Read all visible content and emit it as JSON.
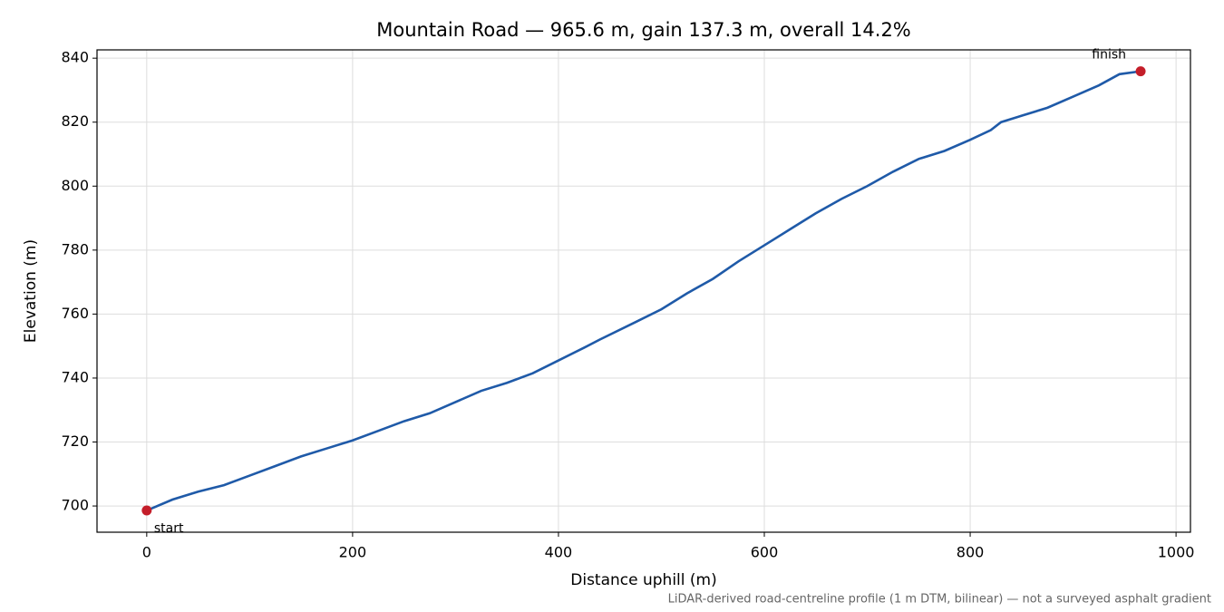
{
  "chart_data": {
    "type": "line",
    "title": "Mountain Road — 965.6 m, gain 137.3 m, overall 14.2%",
    "xlabel": "Distance uphill (m)",
    "ylabel": "Elevation (m)",
    "note": "LiDAR-derived road-centreline profile (1 m DTM, bilinear) — not a surveyed asphalt gradient",
    "color": "#1f5aa8",
    "x": [
      0,
      25,
      50,
      75,
      100,
      125,
      150,
      175,
      200,
      225,
      250,
      275,
      300,
      325,
      350,
      375,
      400,
      425,
      440,
      475,
      500,
      525,
      550,
      575,
      600,
      625,
      650,
      675,
      700,
      725,
      750,
      775,
      800,
      820,
      830,
      850,
      875,
      900,
      925,
      945,
      965.6
    ],
    "values": [
      698.6,
      702,
      704.5,
      706.5,
      709.5,
      712.5,
      715.5,
      718,
      720.5,
      723.5,
      726.5,
      729,
      732.5,
      736,
      738.5,
      741.5,
      745.5,
      749.5,
      752,
      757.5,
      761.5,
      766.5,
      771,
      776.5,
      781.5,
      786.5,
      791.5,
      796,
      800,
      804.5,
      808.5,
      811,
      814.5,
      817.5,
      820,
      822,
      824.5,
      828,
      831.5,
      835,
      835.9
    ],
    "points": {
      "x": [
        0,
        965.6
      ],
      "values": [
        698.6,
        835.9
      ],
      "labels": [
        "start",
        "finish"
      ],
      "color": "#c41e2a"
    },
    "xlim": [
      -48.3,
      1014
    ],
    "ylim": [
      691.8,
      842.6
    ],
    "xticks": [
      0,
      200,
      400,
      600,
      800,
      1000
    ],
    "yticks": [
      700,
      720,
      740,
      760,
      780,
      800,
      820,
      840
    ],
    "grid": true
  }
}
